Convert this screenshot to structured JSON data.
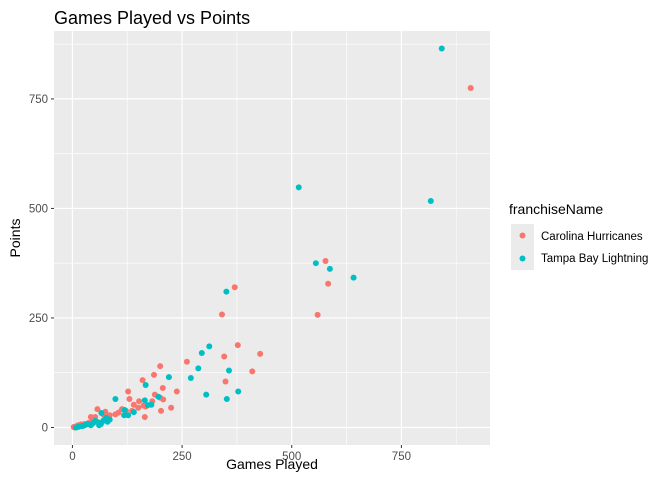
{
  "chart_data": {
    "type": "scatter",
    "title": "Games Played vs Points",
    "xlabel": "Games Played",
    "ylabel": "Points",
    "xlim": [
      -42,
      952
    ],
    "ylim": [
      -40,
      905
    ],
    "x_ticks": [
      0,
      250,
      500,
      750
    ],
    "x_tick_labels": [
      "0",
      "250",
      "500",
      "750"
    ],
    "y_ticks": [
      0,
      250,
      500,
      750
    ],
    "y_tick_labels": [
      "0",
      "250",
      "500",
      "750"
    ],
    "grid": true,
    "legend": {
      "title": "franchiseName",
      "position": "right",
      "entries": [
        "Carolina Hurricanes",
        "Tampa Bay Lightning"
      ]
    },
    "series": [
      {
        "name": "Carolina Hurricanes",
        "color": "#F8766D",
        "points": [
          [
            908,
            775
          ],
          [
            577,
            380
          ],
          [
            583,
            328
          ],
          [
            559,
            257
          ],
          [
            370,
            320
          ],
          [
            341,
            258
          ],
          [
            428,
            168
          ],
          [
            377,
            188
          ],
          [
            410,
            128
          ],
          [
            349,
            105
          ],
          [
            346,
            162
          ],
          [
            261,
            150
          ],
          [
            238,
            82
          ],
          [
            200,
            140
          ],
          [
            186,
            120
          ],
          [
            206,
            90
          ],
          [
            200,
            68
          ],
          [
            207,
            64
          ],
          [
            225,
            45
          ],
          [
            202,
            38
          ],
          [
            160,
            108
          ],
          [
            162,
            50
          ],
          [
            167,
            48
          ],
          [
            165,
            24
          ],
          [
            127,
            82
          ],
          [
            130,
            65
          ],
          [
            140,
            52
          ],
          [
            136,
            38
          ],
          [
            122,
            38
          ],
          [
            150,
            45
          ],
          [
            57,
            42
          ],
          [
            75,
            36
          ],
          [
            72,
            28
          ],
          [
            85,
            28
          ],
          [
            98,
            30
          ],
          [
            52,
            24
          ],
          [
            47,
            14
          ],
          [
            42,
            24
          ],
          [
            42,
            12
          ],
          [
            36,
            10
          ],
          [
            28,
            8
          ],
          [
            20,
            7
          ],
          [
            16,
            3
          ],
          [
            10,
            3
          ],
          [
            9,
            1
          ],
          [
            5,
            0
          ],
          [
            3,
            1
          ],
          [
            13,
            5
          ],
          [
            62,
            8
          ],
          [
            113,
            42
          ],
          [
            105,
            34
          ],
          [
            152,
            60
          ],
          [
            188,
            75
          ],
          [
            182,
            60
          ]
        ]
      },
      {
        "name": "Tampa Bay Lightning",
        "color": "#00BFC4",
        "points": [
          [
            842,
            865
          ],
          [
            516,
            548
          ],
          [
            817,
            517
          ],
          [
            555,
            375
          ],
          [
            641,
            342
          ],
          [
            587,
            362
          ],
          [
            351,
            310
          ],
          [
            312,
            185
          ],
          [
            295,
            170
          ],
          [
            287,
            135
          ],
          [
            270,
            113
          ],
          [
            357,
            130
          ],
          [
            378,
            82
          ],
          [
            352,
            65
          ],
          [
            305,
            75
          ],
          [
            220,
            115
          ],
          [
            167,
            97
          ],
          [
            196,
            70
          ],
          [
            172,
            51
          ],
          [
            140,
            35
          ],
          [
            127,
            28
          ],
          [
            119,
            40
          ],
          [
            118,
            28
          ],
          [
            98,
            65
          ],
          [
            85,
            18
          ],
          [
            77,
            22
          ],
          [
            66,
            33
          ],
          [
            65,
            8
          ],
          [
            58,
            12
          ],
          [
            61,
            5
          ],
          [
            47,
            10
          ],
          [
            42,
            5
          ],
          [
            30,
            6
          ],
          [
            22,
            3
          ],
          [
            15,
            2
          ],
          [
            12,
            1
          ],
          [
            8,
            0
          ],
          [
            25,
            4
          ],
          [
            35,
            8
          ],
          [
            52,
            15
          ],
          [
            70,
            15
          ],
          [
            80,
            13
          ],
          [
            180,
            52
          ],
          [
            165,
            62
          ]
        ]
      }
    ]
  }
}
